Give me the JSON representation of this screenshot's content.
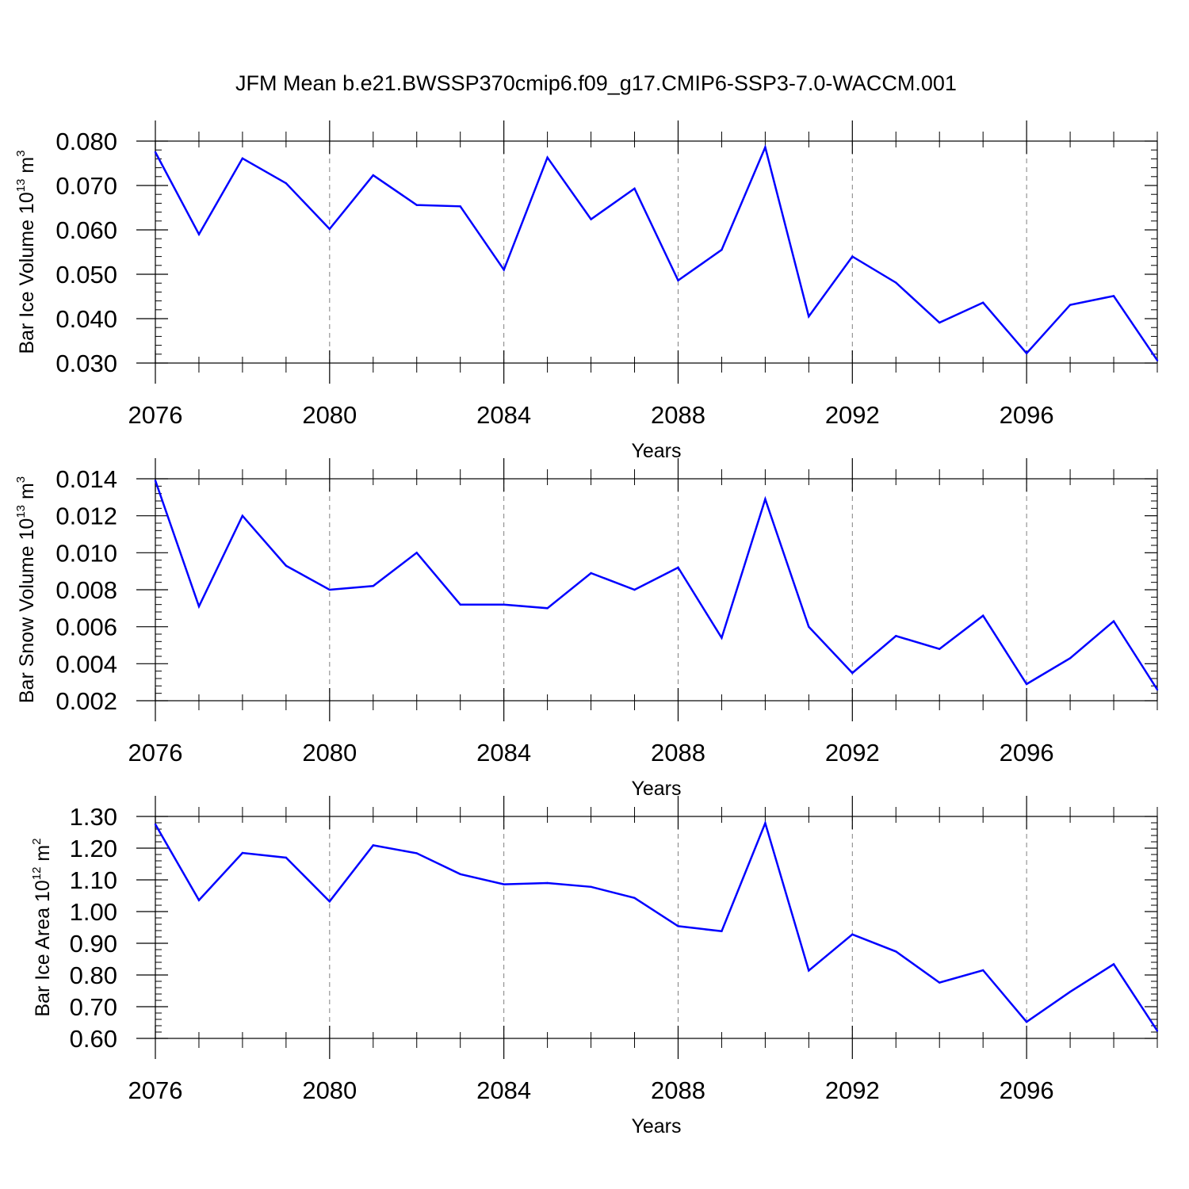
{
  "figure_title": "JFM Mean b.e21.BWSSP370cmip6.f09_g17.CMIP6-SSP3-7.0-WACCM.001",
  "colors": {
    "series": "#0000ff",
    "axes": "#000000",
    "grid": "#808080",
    "background": "#ffffff"
  },
  "chart_data": [
    {
      "type": "line",
      "xlabel": "Years",
      "ylabel": {
        "text": "Bar Ice Volume 10",
        "exponent": "13",
        "unit": " m",
        "unit_exponent": "3"
      },
      "xlim": [
        2076,
        2099
      ],
      "ylim": [
        0.03,
        0.08
      ],
      "x_ticks": [
        2076,
        2080,
        2084,
        2088,
        2092,
        2096
      ],
      "x_tick_labels": [
        "2076",
        "2080",
        "2084",
        "2088",
        "2092",
        "2096"
      ],
      "y_ticks": [
        0.03,
        0.04,
        0.05,
        0.06,
        0.07,
        0.08
      ],
      "y_tick_labels": [
        "0.030",
        "0.040",
        "0.050",
        "0.060",
        "0.070",
        "0.080"
      ],
      "grid": "dashed vertical at major x ticks",
      "x": [
        2076,
        2077,
        2078,
        2079,
        2080,
        2081,
        2082,
        2083,
        2084,
        2085,
        2086,
        2087,
        2088,
        2089,
        2090,
        2091,
        2092,
        2093,
        2094,
        2095,
        2096,
        2097,
        2098,
        2099
      ],
      "values": [
        0.0775,
        0.059,
        0.0761,
        0.0705,
        0.0602,
        0.0723,
        0.0656,
        0.0653,
        0.051,
        0.0763,
        0.0624,
        0.0693,
        0.0486,
        0.0555,
        0.0786,
        0.0405,
        0.054,
        0.0481,
        0.0391,
        0.0436,
        0.0322,
        0.0431,
        0.0451,
        0.0306
      ]
    },
    {
      "type": "line",
      "xlabel": "Years",
      "ylabel": {
        "text": "Bar Snow Volume 10",
        "exponent": "13",
        "unit": " m",
        "unit_exponent": "3"
      },
      "xlim": [
        2076,
        2099
      ],
      "ylim": [
        0.002,
        0.014
      ],
      "x_ticks": [
        2076,
        2080,
        2084,
        2088,
        2092,
        2096
      ],
      "x_tick_labels": [
        "2076",
        "2080",
        "2084",
        "2088",
        "2092",
        "2096"
      ],
      "y_ticks": [
        0.002,
        0.004,
        0.006,
        0.008,
        0.01,
        0.012,
        0.014
      ],
      "y_tick_labels": [
        "0.002",
        "0.004",
        "0.006",
        "0.008",
        "0.010",
        "0.012",
        "0.014"
      ],
      "grid": "dashed vertical at major x ticks",
      "x": [
        2076,
        2077,
        2078,
        2079,
        2080,
        2081,
        2082,
        2083,
        2084,
        2085,
        2086,
        2087,
        2088,
        2089,
        2090,
        2091,
        2092,
        2093,
        2094,
        2095,
        2096,
        2097,
        2098,
        2099
      ],
      "values": [
        0.0139,
        0.0071,
        0.012,
        0.0093,
        0.008,
        0.0082,
        0.01,
        0.0072,
        0.0072,
        0.007,
        0.0089,
        0.008,
        0.0092,
        0.0054,
        0.0129,
        0.006,
        0.0035,
        0.0055,
        0.0048,
        0.0066,
        0.0029,
        0.0043,
        0.0063,
        0.0026
      ]
    },
    {
      "type": "line",
      "xlabel": "Years",
      "ylabel": {
        "text": "Bar Ice Area 10",
        "exponent": "12",
        "unit": " m",
        "unit_exponent": "2"
      },
      "xlim": [
        2076,
        2099
      ],
      "ylim": [
        0.6,
        1.3
      ],
      "x_ticks": [
        2076,
        2080,
        2084,
        2088,
        2092,
        2096
      ],
      "x_tick_labels": [
        "2076",
        "2080",
        "2084",
        "2088",
        "2092",
        "2096"
      ],
      "y_ticks": [
        0.6,
        0.7,
        0.8,
        0.9,
        1.0,
        1.1,
        1.2,
        1.3
      ],
      "y_tick_labels": [
        "0.60",
        "0.70",
        "0.80",
        "0.90",
        "1.00",
        "1.10",
        "1.20",
        "1.30"
      ],
      "grid": "dashed vertical at major x ticks",
      "x": [
        2076,
        2077,
        2078,
        2079,
        2080,
        2081,
        2082,
        2083,
        2084,
        2085,
        2086,
        2087,
        2088,
        2089,
        2090,
        2091,
        2092,
        2093,
        2094,
        2095,
        2096,
        2097,
        2098,
        2099
      ],
      "values": [
        1.275,
        1.036,
        1.185,
        1.17,
        1.032,
        1.209,
        1.184,
        1.118,
        1.086,
        1.09,
        1.078,
        1.043,
        0.954,
        0.938,
        1.279,
        0.814,
        0.928,
        0.874,
        0.776,
        0.815,
        0.652,
        0.747,
        0.834,
        0.624
      ]
    }
  ]
}
